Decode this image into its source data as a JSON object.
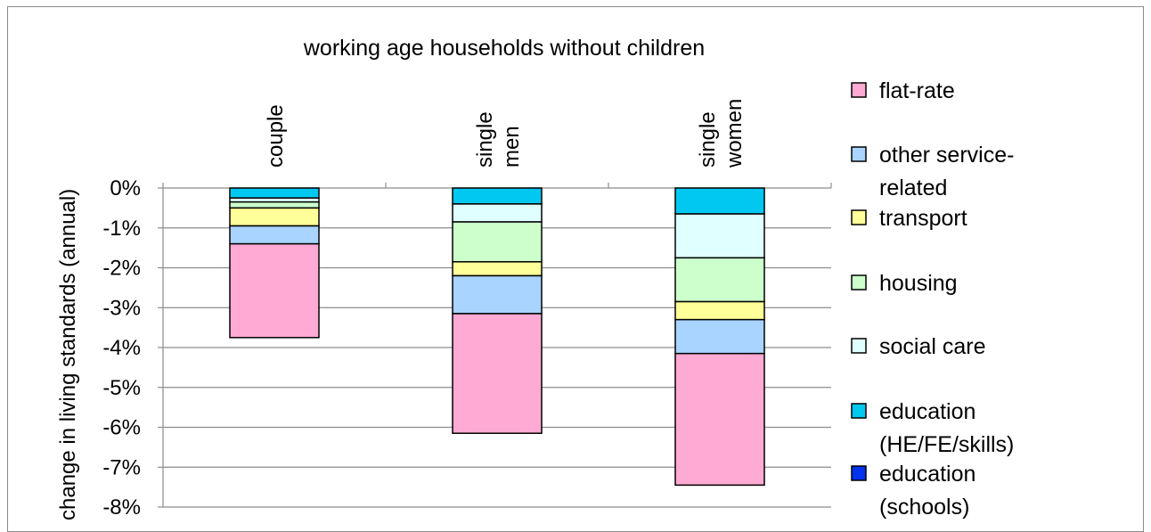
{
  "chart_data": {
    "type": "bar",
    "stacked": true,
    "title": "working age households without children",
    "ylabel": "change in living standards (annual)",
    "xlabel": "",
    "ylim": [
      -8,
      0
    ],
    "yticks": [
      "0%",
      "-1%",
      "-2%",
      "-3%",
      "-4%",
      "-5%",
      "-6%",
      "-7%",
      "-8%"
    ],
    "grid": true,
    "legend_position": "right",
    "categories": [
      {
        "lines": [
          "couple"
        ]
      },
      {
        "lines": [
          "single",
          "men"
        ]
      },
      {
        "lines": [
          "single",
          "women"
        ]
      }
    ],
    "series": [
      {
        "name": "education (HE/FE/skills)",
        "legend_lines": [
          "education",
          "(HE/FE/skills)"
        ],
        "color": "#00c8f0",
        "values": [
          -0.25,
          -0.4,
          -0.65
        ]
      },
      {
        "name": "social care",
        "legend_lines": [
          "social care"
        ],
        "color": "#e0ffff",
        "values": [
          -0.1,
          -0.45,
          -1.1
        ]
      },
      {
        "name": "housing",
        "legend_lines": [
          "housing"
        ],
        "color": "#ccffcc",
        "values": [
          -0.15,
          -1.0,
          -1.1
        ]
      },
      {
        "name": "transport",
        "legend_lines": [
          "transport"
        ],
        "color": "#ffff99",
        "values": [
          -0.45,
          -0.35,
          -0.45
        ]
      },
      {
        "name": "other service-related",
        "legend_lines": [
          "other service-",
          "related"
        ],
        "color": "#a8d4ff",
        "values": [
          -0.45,
          -0.95,
          -0.85
        ]
      },
      {
        "name": "flat-rate",
        "legend_lines": [
          "flat-rate"
        ],
        "color": "#ffaad4",
        "values": [
          -2.35,
          -3.0,
          -3.3
        ]
      },
      {
        "name": "education (schools)",
        "legend_lines": [
          "education",
          "(schools)"
        ],
        "color": "#0033ee",
        "values": [
          0,
          0,
          0
        ]
      }
    ],
    "legend_order": [
      "flat-rate",
      "other service-related",
      "transport",
      "housing",
      "social care",
      "education (HE/FE/skills)",
      "education (schools)"
    ]
  }
}
